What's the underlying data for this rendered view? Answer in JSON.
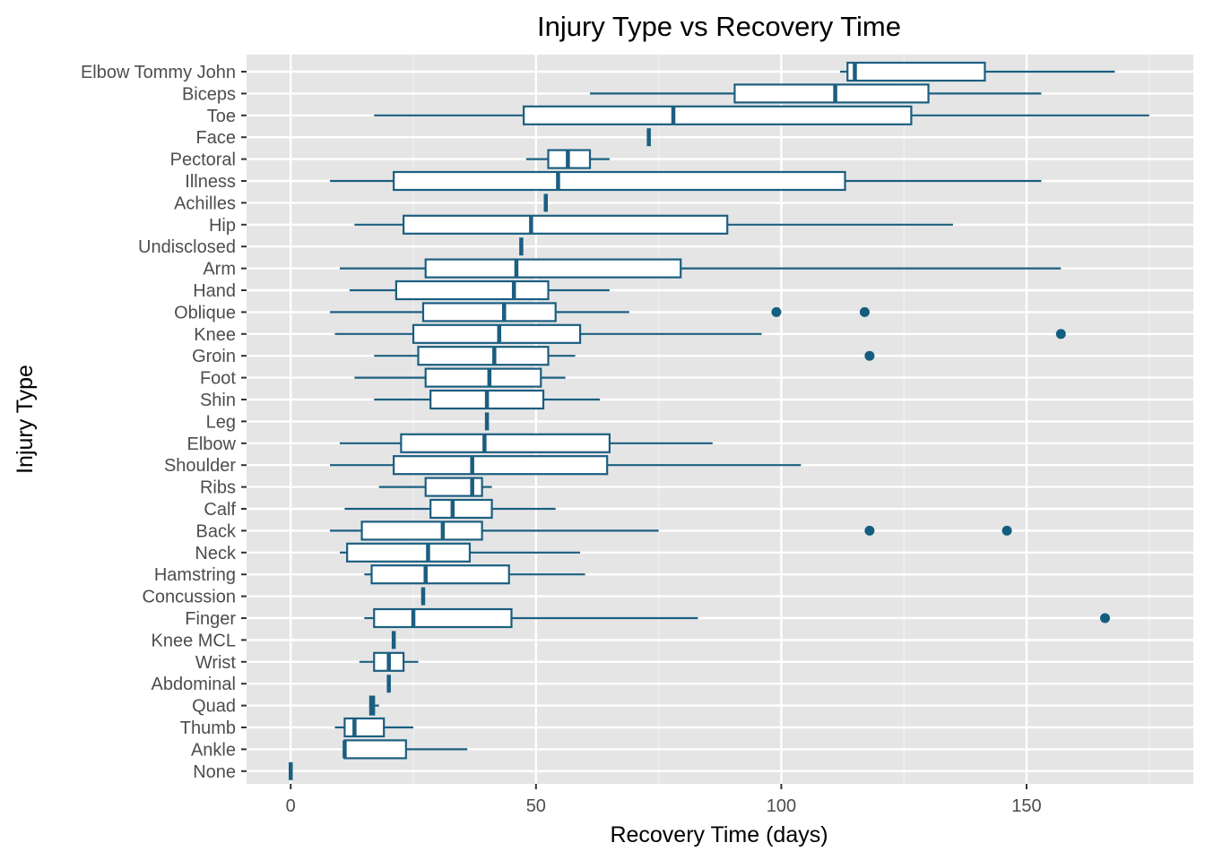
{
  "chart_data": {
    "type": "boxplot",
    "orientation": "horizontal",
    "title": "Injury Type vs Recovery Time",
    "xlabel": "Recovery Time (days)",
    "ylabel": "Injury Type",
    "xlim": [
      -9,
      184
    ],
    "xticks": [
      0,
      50,
      100,
      150
    ],
    "grid": true,
    "legend": "none",
    "colors": {
      "box_stroke": "#1b5e80",
      "outlier": "#135e7f",
      "panel_bg": "#e5e5e5",
      "grid_major": "#ffffff",
      "grid_minor": "#f2f2f2"
    },
    "categories": [
      "Elbow Tommy John",
      "Biceps",
      "Toe",
      "Face",
      "Pectoral",
      "Illness",
      "Achilles",
      "Hip",
      "Undisclosed",
      "Arm",
      "Hand",
      "Oblique",
      "Knee",
      "Groin",
      "Foot",
      "Shin",
      "Leg",
      "Elbow",
      "Shoulder",
      "Ribs",
      "Calf",
      "Back",
      "Neck",
      "Hamstring",
      "Concussion",
      "Finger",
      "Knee MCL",
      "Wrist",
      "Abdominal",
      "Quad",
      "Thumb",
      "Ankle",
      "None"
    ],
    "boxes": [
      {
        "min": 112,
        "q1": 113.5,
        "median": 115,
        "q3": 141.5,
        "max": 168,
        "outliers": []
      },
      {
        "min": 61,
        "q1": 90.5,
        "median": 111,
        "q3": 130,
        "max": 153,
        "outliers": []
      },
      {
        "min": 17,
        "q1": 47.5,
        "median": 78,
        "q3": 126.5,
        "max": 175,
        "outliers": []
      },
      {
        "min": 73,
        "q1": 73,
        "median": 73,
        "q3": 73,
        "max": 73,
        "outliers": []
      },
      {
        "min": 48,
        "q1": 52.5,
        "median": 56.5,
        "q3": 61,
        "max": 65,
        "outliers": []
      },
      {
        "min": 8,
        "q1": 21,
        "median": 54.5,
        "q3": 113,
        "max": 153,
        "outliers": []
      },
      {
        "min": 52,
        "q1": 52,
        "median": 52,
        "q3": 52,
        "max": 52,
        "outliers": []
      },
      {
        "min": 13,
        "q1": 23,
        "median": 49,
        "q3": 89,
        "max": 135,
        "outliers": []
      },
      {
        "min": 47,
        "q1": 47,
        "median": 47,
        "q3": 47,
        "max": 47,
        "outliers": []
      },
      {
        "min": 10,
        "q1": 27.5,
        "median": 46,
        "q3": 79.5,
        "max": 157,
        "outliers": []
      },
      {
        "min": 12,
        "q1": 21.5,
        "median": 45.5,
        "q3": 52.5,
        "max": 65,
        "outliers": []
      },
      {
        "min": 8,
        "q1": 27,
        "median": 43.5,
        "q3": 54,
        "max": 69,
        "outliers": [
          99,
          117
        ]
      },
      {
        "min": 9,
        "q1": 25,
        "median": 42.5,
        "q3": 59,
        "max": 96,
        "outliers": [
          157
        ]
      },
      {
        "min": 17,
        "q1": 26,
        "median": 41.5,
        "q3": 52.5,
        "max": 58,
        "outliers": [
          118
        ]
      },
      {
        "min": 13,
        "q1": 27.5,
        "median": 40.5,
        "q3": 51,
        "max": 56,
        "outliers": []
      },
      {
        "min": 17,
        "q1": 28.5,
        "median": 40,
        "q3": 51.5,
        "max": 63,
        "outliers": []
      },
      {
        "min": 40,
        "q1": 40,
        "median": 40,
        "q3": 40,
        "max": 40,
        "outliers": []
      },
      {
        "min": 10,
        "q1": 22.5,
        "median": 39.5,
        "q3": 65,
        "max": 86,
        "outliers": []
      },
      {
        "min": 8,
        "q1": 21,
        "median": 37,
        "q3": 64.5,
        "max": 104,
        "outliers": []
      },
      {
        "min": 18,
        "q1": 27.5,
        "median": 37,
        "q3": 39,
        "max": 41,
        "outliers": []
      },
      {
        "min": 11,
        "q1": 28.5,
        "median": 33,
        "q3": 41,
        "max": 54,
        "outliers": []
      },
      {
        "min": 8,
        "q1": 14.5,
        "median": 31,
        "q3": 39,
        "max": 75,
        "outliers": [
          118,
          146
        ]
      },
      {
        "min": 10,
        "q1": 11.5,
        "median": 28,
        "q3": 36.5,
        "max": 59,
        "outliers": []
      },
      {
        "min": 15,
        "q1": 16.5,
        "median": 27.5,
        "q3": 44.5,
        "max": 60,
        "outliers": []
      },
      {
        "min": 27,
        "q1": 27,
        "median": 27,
        "q3": 27,
        "max": 27,
        "outliers": []
      },
      {
        "min": 15,
        "q1": 17,
        "median": 25,
        "q3": 45,
        "max": 83,
        "outliers": [
          166
        ]
      },
      {
        "min": 21,
        "q1": 21,
        "median": 21,
        "q3": 21,
        "max": 21,
        "outliers": []
      },
      {
        "min": 14,
        "q1": 17,
        "median": 20,
        "q3": 23,
        "max": 26,
        "outliers": []
      },
      {
        "min": 20,
        "q1": 20,
        "median": 20,
        "q3": 20,
        "max": 20,
        "outliers": []
      },
      {
        "min": 16,
        "q1": 16.2,
        "median": 16.5,
        "q3": 17,
        "max": 18,
        "outliers": []
      },
      {
        "min": 9,
        "q1": 11,
        "median": 13,
        "q3": 19,
        "max": 25,
        "outliers": []
      },
      {
        "min": 11,
        "q1": 11,
        "median": 11,
        "q3": 23.5,
        "max": 36,
        "outliers": []
      },
      {
        "min": 0,
        "q1": 0,
        "median": 0,
        "q3": 0,
        "max": 0,
        "outliers": []
      }
    ]
  }
}
